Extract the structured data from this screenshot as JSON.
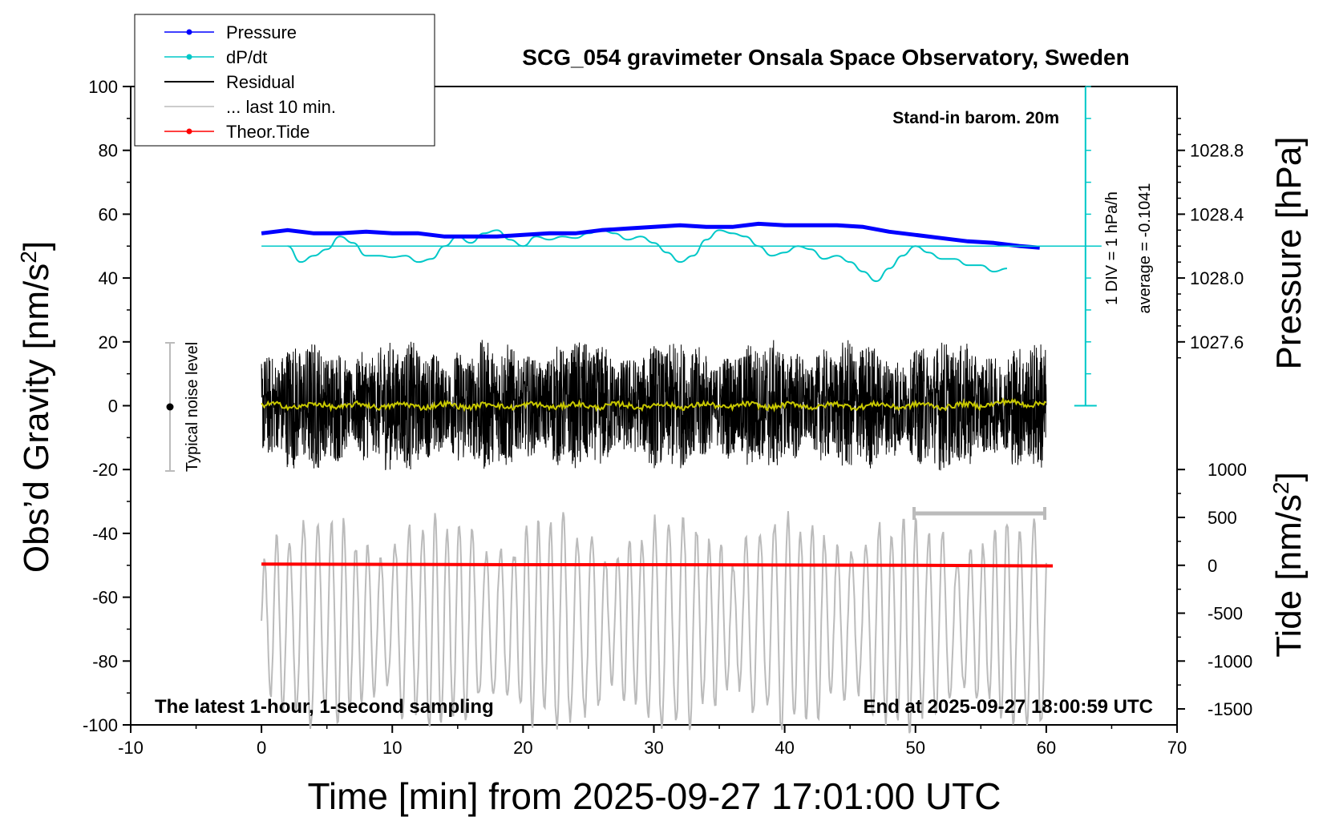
{
  "chart_data": {
    "type": "line",
    "title": "SCG_054 gravimeter Onsala Space Observatory, Sweden",
    "xlabel": "Time [min] from 2025-09-27 17:01:00 UTC",
    "ylabel_left": "Obs’d Gravity [nm/s",
    "ylabel_left_sup": "2",
    "ylabel_left_end": "]",
    "ylabel_right_top": "Pressure [hPa]",
    "ylabel_right_bottom": "Tide [nm/s",
    "ylabel_right_bottom_sup": "2",
    "ylabel_right_bottom_end": "]",
    "xlim": [
      -10,
      70
    ],
    "ylim": [
      -100,
      100
    ],
    "xticks": [
      -10,
      0,
      10,
      20,
      30,
      40,
      50,
      60,
      70
    ],
    "xtick_labels": [
      "-10",
      "0",
      "10",
      "20",
      "30",
      "40",
      "50",
      "60",
      "70"
    ],
    "yticks": [
      -100,
      -80,
      -60,
      -40,
      -20,
      0,
      20,
      40,
      60,
      80,
      100
    ],
    "ytick_labels": [
      "-100",
      "-80",
      "-60",
      "-40",
      "-20",
      "0",
      "20",
      "40",
      "60",
      "80",
      "100"
    ],
    "pressure_ticks": [
      1027.6,
      1028.0,
      1028.4,
      1028.8
    ],
    "pressure_tick_labels": [
      "1027.6",
      "1028.0",
      "1028.4",
      "1028.8"
    ],
    "tide_ticks": [
      -1500,
      -1000,
      -500,
      0,
      500,
      1000
    ],
    "tide_tick_labels": [
      "-1500",
      "-1000",
      "-500",
      "0",
      "500",
      "1000"
    ],
    "legend": [
      {
        "label": "Pressure",
        "color": "#0000ff",
        "marker": true
      },
      {
        "label": "dP/dt",
        "color": "#00c8c8",
        "marker": true
      },
      {
        "label": "Residual",
        "color": "#000000",
        "marker": false
      },
      {
        "label": "... last 10 min.",
        "color": "#bbbbbb",
        "marker": false
      },
      {
        "label": "Theor.Tide",
        "color": "#ff0000",
        "marker": true
      }
    ],
    "legend_position": "top-left",
    "annotations": {
      "stand_in": "Stand-in barom. 20m",
      "div": "1 DIV = 1 hPa/h",
      "average": "average = -0.1041",
      "noise": "Typical noise level",
      "bottom_left": "The latest 1-hour, 1-second sampling",
      "bottom_right": "End at 2025-09-27 18:00:59 UTC"
    },
    "series": [
      {
        "name": "Pressure",
        "color": "#0000ff",
        "x": [
          0,
          2,
          4,
          6,
          8,
          10,
          12,
          14,
          16,
          18,
          20,
          22,
          24,
          26,
          28,
          30,
          32,
          34,
          36,
          38,
          40,
          42,
          44,
          46,
          48,
          50,
          52,
          54,
          56,
          58,
          59.5
        ],
        "y": [
          54,
          55,
          54,
          54,
          54.5,
          54,
          54,
          53,
          53,
          53,
          53.5,
          54,
          54,
          55,
          55.5,
          56,
          56.5,
          56,
          56,
          57,
          56.5,
          56.5,
          56.5,
          56,
          54.5,
          53.5,
          52.5,
          51.5,
          51,
          50,
          49.5
        ]
      },
      {
        "name": "dP/dt",
        "color": "#00c8c8",
        "x": [
          2,
          3,
          4,
          5,
          6,
          7,
          8,
          9,
          10,
          11,
          12,
          13,
          14,
          15,
          16,
          17,
          18,
          19,
          20,
          21,
          22,
          23,
          24,
          25,
          26,
          27,
          28,
          29,
          30,
          31,
          32,
          33,
          34,
          35,
          36,
          37,
          38,
          39,
          40,
          41,
          42,
          43,
          44,
          45,
          46,
          47,
          48,
          49,
          50,
          51,
          52,
          53,
          54,
          55,
          56,
          57
        ],
        "y": [
          50,
          45,
          47,
          49,
          53,
          51,
          47,
          47,
          46.5,
          47,
          45,
          46,
          50,
          53,
          51,
          54,
          55,
          52,
          50,
          53,
          52,
          53,
          52.5,
          54,
          55,
          54,
          52,
          53,
          51,
          48,
          45,
          47,
          52,
          55,
          54,
          53,
          50,
          47,
          48,
          50,
          49,
          46,
          47,
          45,
          42,
          39,
          43,
          47,
          50,
          48,
          46,
          46,
          44,
          44,
          42,
          43
        ]
      },
      {
        "name": "Residual",
        "color": "#000000",
        "x": [
          0,
          60
        ],
        "y": [
          0,
          0
        ]
      },
      {
        "name": "... last 10 min.",
        "color": "#bbbbbb",
        "x": [
          0,
          60
        ],
        "y": [
          -75,
          -75
        ]
      },
      {
        "name": "Theor.Tide",
        "color": "#ff0000",
        "x": [
          0,
          10,
          20,
          30,
          40,
          50,
          60.5
        ],
        "y": [
          -49.6,
          -49.7,
          -49.8,
          -49.8,
          -49.9,
          -50.0,
          -50.2
        ]
      }
    ]
  }
}
